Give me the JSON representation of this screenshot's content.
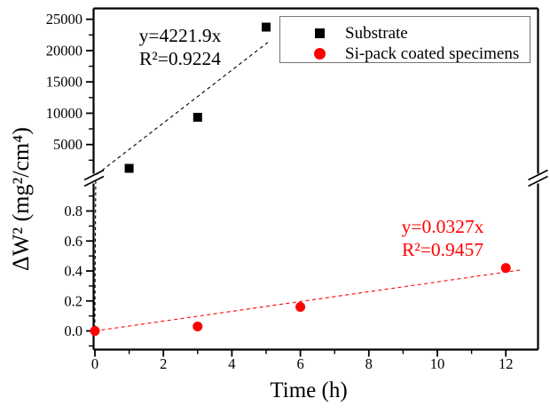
{
  "chart_data": {
    "type": "scatter",
    "title": "",
    "xlabel": "Time (h)",
    "ylabel": "ΔW² (mg²/cm⁴)",
    "grid": false,
    "x_axis": {
      "major_ticks": [
        0,
        2,
        4,
        6,
        8,
        10,
        12
      ],
      "major_tick_labels": [
        "0",
        "2",
        "4",
        "6",
        "8",
        "10",
        "12"
      ],
      "minor_ticks": [
        1,
        3,
        5,
        7,
        9,
        11
      ],
      "range": [
        -0.05,
        12.93
      ]
    },
    "y_axis": {
      "broken": true,
      "upper_segment": {
        "major_ticks": [
          5000,
          10000,
          15000,
          20000,
          25000
        ],
        "major_tick_labels": [
          "5000",
          "10000",
          "15000",
          "20000",
          "25000"
        ],
        "minor_ticks": [
          2500,
          7500,
          12500,
          17500,
          22500
        ],
        "range": [
          0,
          26700
        ]
      },
      "lower_segment": {
        "major_ticks": [
          0,
          0.2,
          0.4,
          0.6,
          0.8
        ],
        "major_tick_labels": [
          "0.0",
          "0.2",
          "0.4",
          "0.6",
          "0.8"
        ],
        "minor_ticks": [
          -0.1,
          0.1,
          0.3,
          0.5,
          0.7,
          0.9
        ],
        "range": [
          -0.13,
          1.0
        ]
      }
    },
    "series": [
      {
        "name": "Substrate",
        "marker": "square",
        "color": "#000000",
        "y_segment": "upper",
        "points": [
          [
            1,
            1200
          ],
          [
            3,
            9350
          ],
          [
            5,
            23750
          ]
        ],
        "fit": {
          "equation_label": "y=4221.9x",
          "r2_label": "R²=0.9224",
          "slope": 4221.9,
          "line_style": "dashed"
        }
      },
      {
        "name": "Si-pack coated specimens",
        "marker": "circle",
        "color": "#ff0000",
        "y_segment": "lower",
        "points": [
          [
            0,
            0
          ],
          [
            3,
            0.03
          ],
          [
            6,
            0.16
          ],
          [
            12,
            0.42
          ]
        ],
        "fit": {
          "equation_label": "y=0.0327x",
          "r2_label": "R²=0.9457",
          "slope": 0.0327,
          "line_style": "dashed"
        }
      }
    ],
    "legend": {
      "position": "top-right",
      "items": [
        "Substrate",
        "Si-pack coated specimens"
      ]
    }
  },
  "frame_color": "#000000",
  "background_color": "#ffffff",
  "legend_border_color": "#767676"
}
